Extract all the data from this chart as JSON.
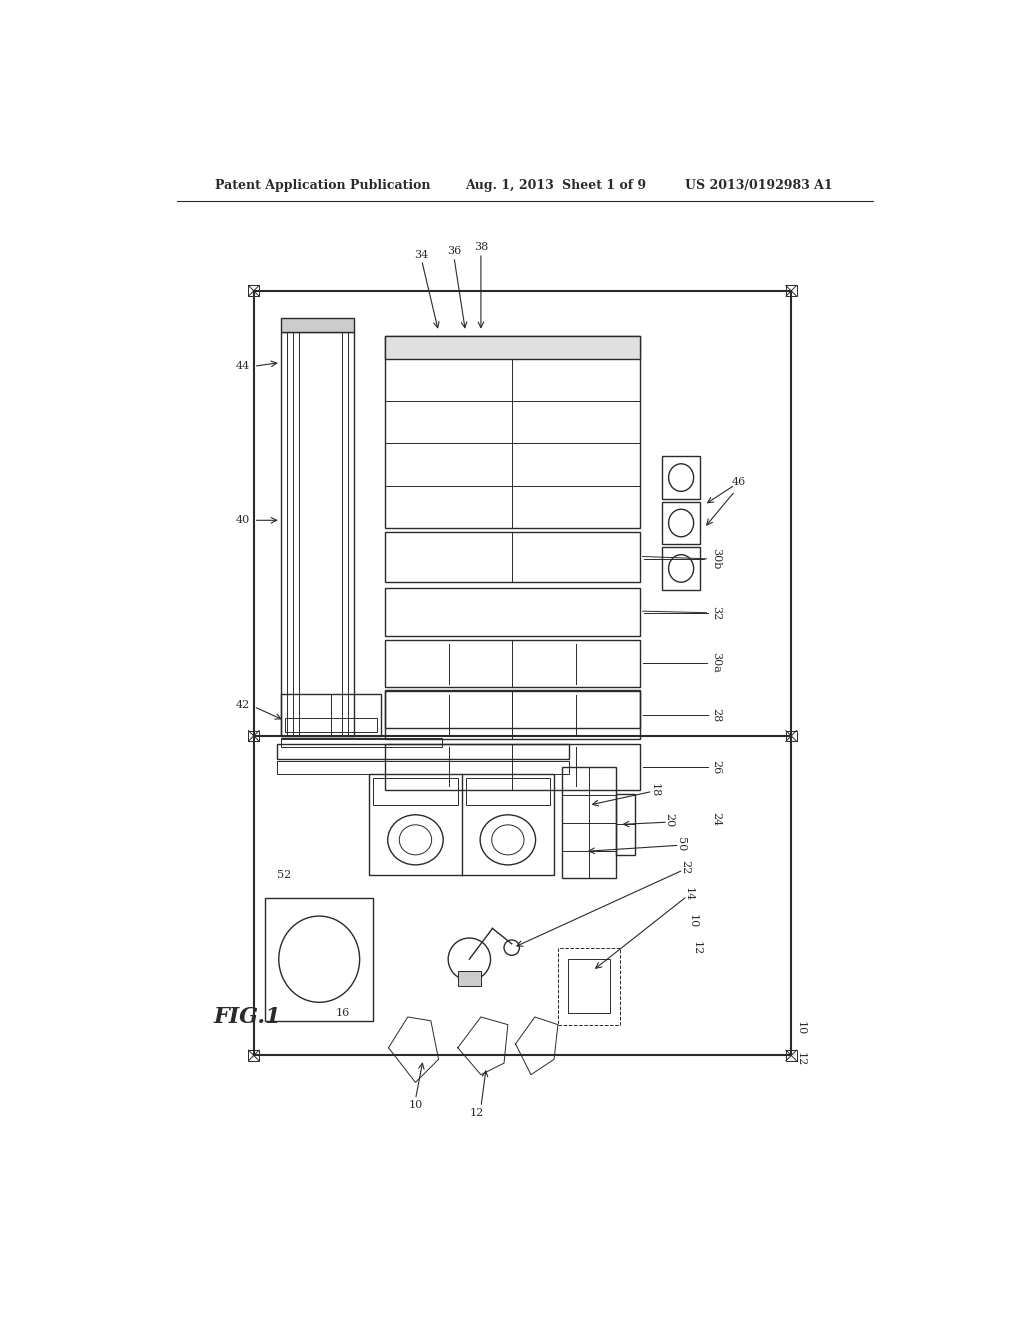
{
  "bg_color": "#ffffff",
  "header_text1": "Patent Application Publication",
  "header_text2": "Aug. 1, 2013",
  "header_text3": "Sheet 1 of 9",
  "header_text4": "US 2013/0192983 A1",
  "fig_label": "FIG.1",
  "line_color": "#2a2a2a"
}
